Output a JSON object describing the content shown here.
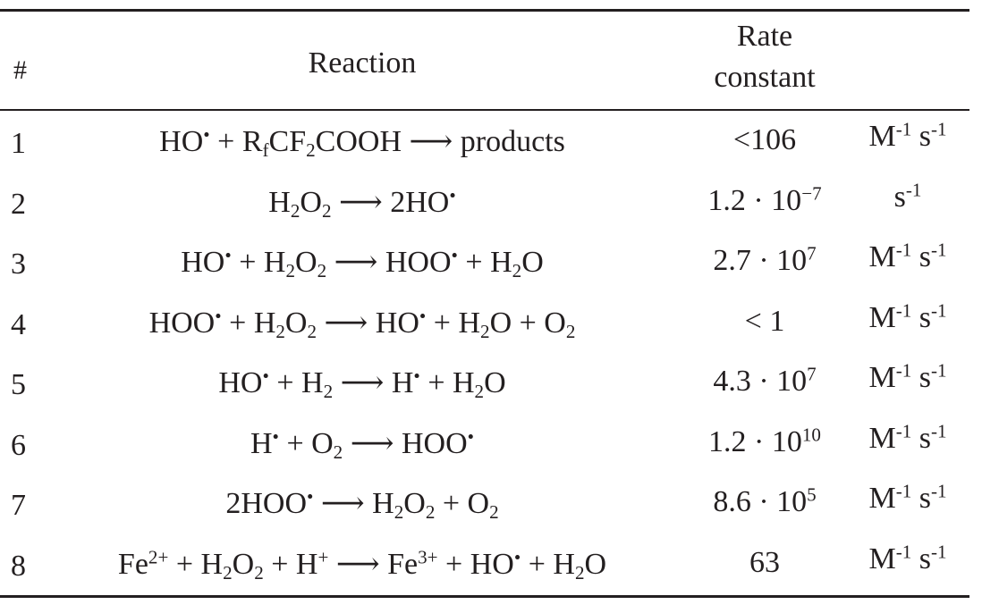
{
  "header": {
    "num_label": "#",
    "reaction_label": "Reaction",
    "rate_label_line1": "Rate",
    "rate_label_line2": "constant"
  },
  "rows": [
    {
      "num": "1",
      "reaction_html": "HO<sup>•</sup> + R<sub>f</sub>CF<sub>2</sub>COOH ⟶ products",
      "reaction_text": "HO• + RfCF2COOH ⟶ products",
      "rate_html": "&lt;106",
      "rate_text": "<106",
      "unit_html": "M<sup>-1</sup> s<sup>-1</sup>",
      "unit_text": "M-1 s-1"
    },
    {
      "num": "2",
      "reaction_html": "H<sub>2</sub>O<sub>2</sub> ⟶ 2HO<sup>•</sup>",
      "reaction_text": "H2O2 ⟶ 2HO•",
      "rate_html": "1.2 · 10<sup>−7</sup>",
      "rate_text": "1.2 · 10−7",
      "unit_html": "s<sup>-1</sup>",
      "unit_text": "s-1"
    },
    {
      "num": "3",
      "reaction_html": "HO<sup>•</sup> + H<sub>2</sub>O<sub>2</sub> ⟶ HOO<sup>•</sup> + H<sub>2</sub>O",
      "reaction_text": "HO• + H2O2 ⟶ HOO• + H2O",
      "rate_html": "2.7 · 10<sup>7</sup>",
      "rate_text": "2.7 · 107",
      "unit_html": "M<sup>-1</sup> s<sup>-1</sup>",
      "unit_text": "M-1 s-1"
    },
    {
      "num": "4",
      "reaction_html": "HOO<sup>•</sup> + H<sub>2</sub>O<sub>2</sub> ⟶ HO<sup>•</sup> + H<sub>2</sub>O + O<sub>2</sub>",
      "reaction_text": "HOO• + H2O2 ⟶ HO• + H2O + O2",
      "rate_html": "&lt; 1",
      "rate_text": "< 1",
      "unit_html": "M<sup>-1</sup> s<sup>-1</sup>",
      "unit_text": "M-1 s-1"
    },
    {
      "num": "5",
      "reaction_html": "HO<sup>•</sup> + H<sub>2</sub> ⟶ H<sup>•</sup> + H<sub>2</sub>O",
      "reaction_text": "HO• + H2 ⟶ H• + H2O",
      "rate_html": "4.3 · 10<sup>7</sup>",
      "rate_text": "4.3 · 107",
      "unit_html": "M<sup>-1</sup> s<sup>-1</sup>",
      "unit_text": "M-1 s-1"
    },
    {
      "num": "6",
      "reaction_html": "H<sup>•</sup> + O<sub>2</sub> ⟶ HOO<sup>•</sup>",
      "reaction_text": "H• + O2 ⟶ HOO•",
      "rate_html": "1.2 · 10<sup>10</sup>",
      "rate_text": "1.2 · 1010",
      "unit_html": "M<sup>-1</sup> s<sup>-1</sup>",
      "unit_text": "M-1 s-1"
    },
    {
      "num": "7",
      "reaction_html": "2HOO<sup>•</sup> ⟶ H<sub>2</sub>O<sub>2</sub> + O<sub>2</sub>",
      "reaction_text": "2HOO• ⟶ H2O2 + O2",
      "rate_html": "8.6 · 10<sup>5</sup>",
      "rate_text": "8.6 · 105",
      "unit_html": "M<sup>-1</sup> s<sup>-1</sup>",
      "unit_text": "M-1 s-1"
    },
    {
      "num": "8",
      "reaction_html": "Fe<sup>2+</sup> + H<sub>2</sub>O<sub>2</sub> + H<sup>+</sup> ⟶ Fe<sup>3+</sup> + HO<sup>•</sup> + H<sub>2</sub>O",
      "reaction_text": "Fe2+ + H2O2 + H+ ⟶ Fe3+ + HO• + H2O",
      "rate_html": "63",
      "rate_text": "63",
      "unit_html": "M<sup>-1</sup> s<sup>-1</sup>",
      "unit_text": "M-1 s-1"
    }
  ]
}
